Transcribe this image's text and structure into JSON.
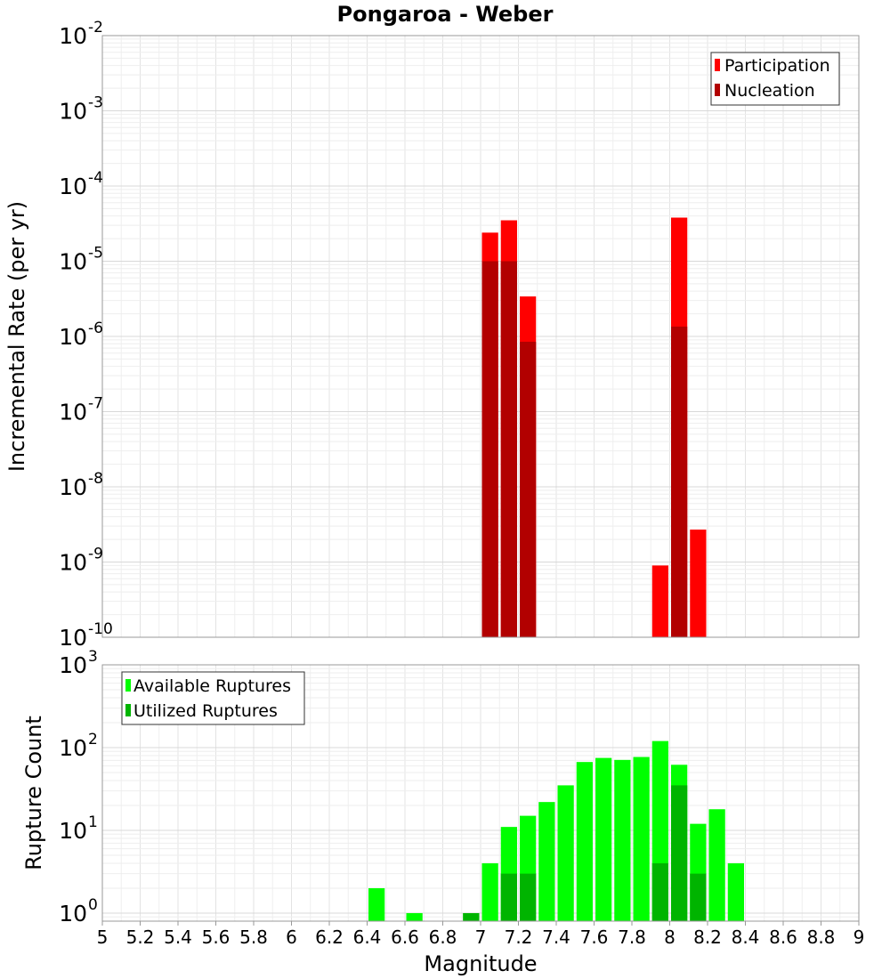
{
  "chart_data": [
    {
      "type": "bar",
      "title": "Pongaroa - Weber",
      "xlabel": "",
      "ylabel": "Incremental Rate (per yr)",
      "yscale": "log",
      "ylim": [
        1e-10,
        0.01
      ],
      "xlim": [
        5,
        9
      ],
      "grid": true,
      "legend_position": "top-right",
      "bin_width": 0.1,
      "y_ticks": [
        {
          "base": "10",
          "exp": "-10"
        },
        {
          "base": "10",
          "exp": "-9"
        },
        {
          "base": "10",
          "exp": "-8"
        },
        {
          "base": "10",
          "exp": "-7"
        },
        {
          "base": "10",
          "exp": "-6"
        },
        {
          "base": "10",
          "exp": "-5"
        },
        {
          "base": "10",
          "exp": "-4"
        },
        {
          "base": "10",
          "exp": "-3"
        },
        {
          "base": "10",
          "exp": "-2"
        }
      ],
      "series": [
        {
          "name": "Participation",
          "color": "#ff0000",
          "x": [
            7.05,
            7.15,
            7.25,
            7.95,
            8.05,
            8.15
          ],
          "values": [
            2.4e-05,
            3.5e-05,
            3.4e-06,
            9e-10,
            3.8e-05,
            2.7e-09
          ]
        },
        {
          "name": "Nucleation",
          "color": "#b20000",
          "x": [
            7.05,
            7.15,
            7.25,
            8.05
          ],
          "values": [
            1e-05,
            1e-05,
            8.5e-07,
            1.35e-06
          ]
        }
      ]
    },
    {
      "type": "bar",
      "title": "",
      "xlabel": "Magnitude",
      "ylabel": "Rupture Count",
      "yscale": "log",
      "ylim": [
        0.8,
        1000
      ],
      "xlim": [
        5,
        9
      ],
      "grid": true,
      "legend_position": "top-left",
      "bin_width": 0.1,
      "x_ticks": [
        "5",
        "5.2",
        "5.4",
        "5.6",
        "5.8",
        "6",
        "6.2",
        "6.4",
        "6.6",
        "6.8",
        "7",
        "7.2",
        "7.4",
        "7.6",
        "7.8",
        "8",
        "8.2",
        "8.4",
        "8.6",
        "8.8",
        "9"
      ],
      "y_ticks": [
        {
          "base": "10",
          "exp": "0"
        },
        {
          "base": "10",
          "exp": "1"
        },
        {
          "base": "10",
          "exp": "2"
        },
        {
          "base": "10",
          "exp": "3"
        }
      ],
      "series": [
        {
          "name": "Available Ruptures",
          "color": "#00ff00",
          "x": [
            6.45,
            6.65,
            6.95,
            7.05,
            7.15,
            7.25,
            7.35,
            7.45,
            7.55,
            7.65,
            7.75,
            7.85,
            7.95,
            8.05,
            8.15,
            8.25,
            8.35
          ],
          "values": [
            2,
            1,
            1,
            4,
            11,
            15,
            22,
            35,
            67,
            75,
            71,
            77,
            120,
            62,
            12,
            18,
            4
          ]
        },
        {
          "name": "Utilized Ruptures",
          "color": "#00b400",
          "x": [
            6.95,
            7.15,
            7.25,
            7.95,
            8.05,
            8.15
          ],
          "values": [
            1,
            3,
            3,
            4,
            35,
            3
          ]
        }
      ]
    }
  ]
}
